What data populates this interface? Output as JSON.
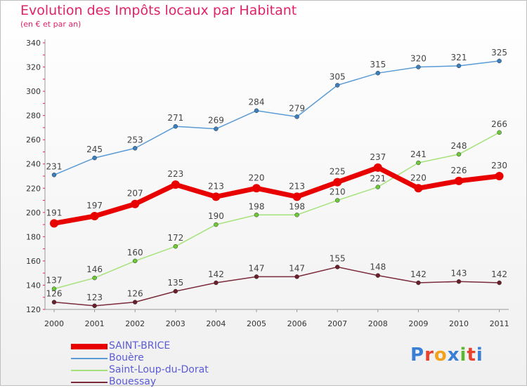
{
  "title": "Evolution des Impôts locaux par Habitant",
  "subtitle": "(en € et par an)",
  "logo": {
    "letters": [
      "P",
      "r",
      "o",
      "x",
      "i",
      "t",
      "i"
    ],
    "colors": [
      "#3a7fd5",
      "#e8412c",
      "#f0a21c",
      "#3a7fd5",
      "#5cb82e",
      "#e8412c",
      "#3a7fd5"
    ]
  },
  "chart_data": {
    "type": "line",
    "title": "Evolution des Impôts locaux par Habitant",
    "subtitle": "(en € et par an)",
    "categories": [
      "2000",
      "2001",
      "2002",
      "2003",
      "2004",
      "2005",
      "2006",
      "2007",
      "2008",
      "2009",
      "2010",
      "2011"
    ],
    "ylim": [
      120,
      340
    ],
    "yticks": [
      120,
      140,
      160,
      180,
      200,
      220,
      240,
      260,
      280,
      300,
      320,
      340
    ],
    "grid": false,
    "legend_position": "bottom-left",
    "series": [
      {
        "name": "Bouère",
        "color": "#5b9bd5",
        "marker": "#3a7fc0",
        "width": 1.5,
        "values": [
          231,
          245,
          253,
          271,
          269,
          284,
          279,
          305,
          315,
          320,
          321,
          325
        ]
      },
      {
        "name": "Saint-Loup-du-Dorat",
        "color": "#a6e27a",
        "marker": "#6cc93a",
        "width": 1.5,
        "values": [
          137,
          146,
          160,
          172,
          190,
          198,
          198,
          210,
          221,
          241,
          248,
          266
        ]
      },
      {
        "name": "Bouessay",
        "color": "#7a2a3a",
        "marker": "#6a1f2a",
        "width": 1.5,
        "values": [
          126,
          123,
          126,
          135,
          142,
          147,
          147,
          155,
          148,
          142,
          143,
          142
        ]
      },
      {
        "name": "SAINT-BRICE",
        "color": "#e80000",
        "marker": "#e80000",
        "width": 7,
        "values": [
          191,
          197,
          207,
          223,
          213,
          220,
          213,
          225,
          237,
          220,
          226,
          230
        ]
      }
    ],
    "legend_order": [
      "SAINT-BRICE",
      "Bouère",
      "Saint-Loup-du-Dorat",
      "Bouessay"
    ]
  }
}
